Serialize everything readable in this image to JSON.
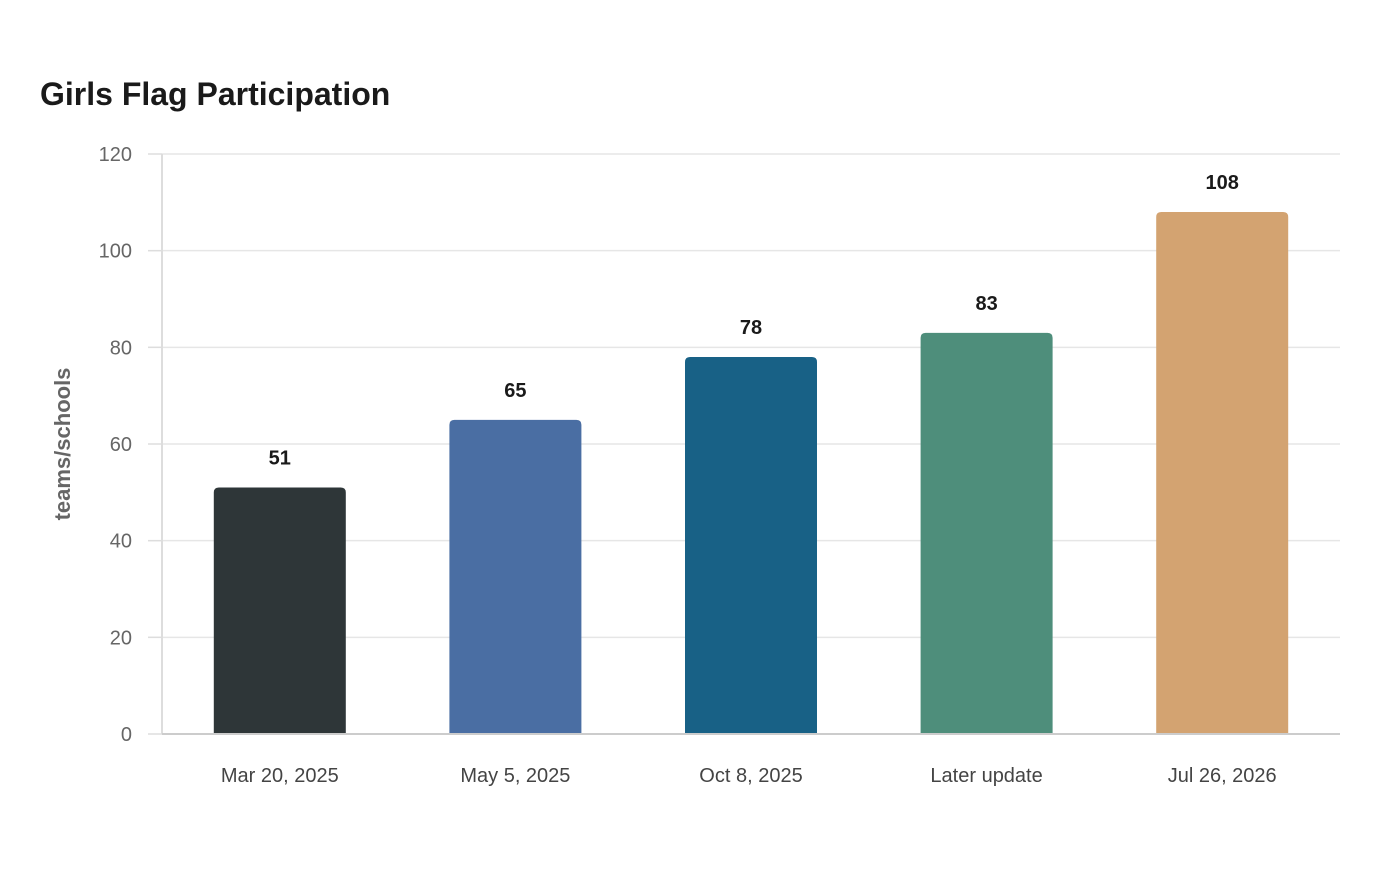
{
  "chart_data": {
    "type": "bar",
    "title": "Girls Flag Participation",
    "xlabel": "",
    "ylabel": "teams/schools",
    "categories": [
      "Mar 20, 2025",
      "May 5, 2025",
      "Oct 8, 2025",
      "Later update",
      "Jul 26, 2026"
    ],
    "values": [
      51,
      65,
      78,
      83,
      108
    ],
    "colors": [
      "#2e3638",
      "#4a6ea3",
      "#186186",
      "#4e8e7b",
      "#d3a371"
    ],
    "ylim": [
      0,
      120
    ],
    "yticks": [
      0,
      20,
      40,
      60,
      80,
      100,
      120
    ],
    "grid": true,
    "legend": "none"
  }
}
